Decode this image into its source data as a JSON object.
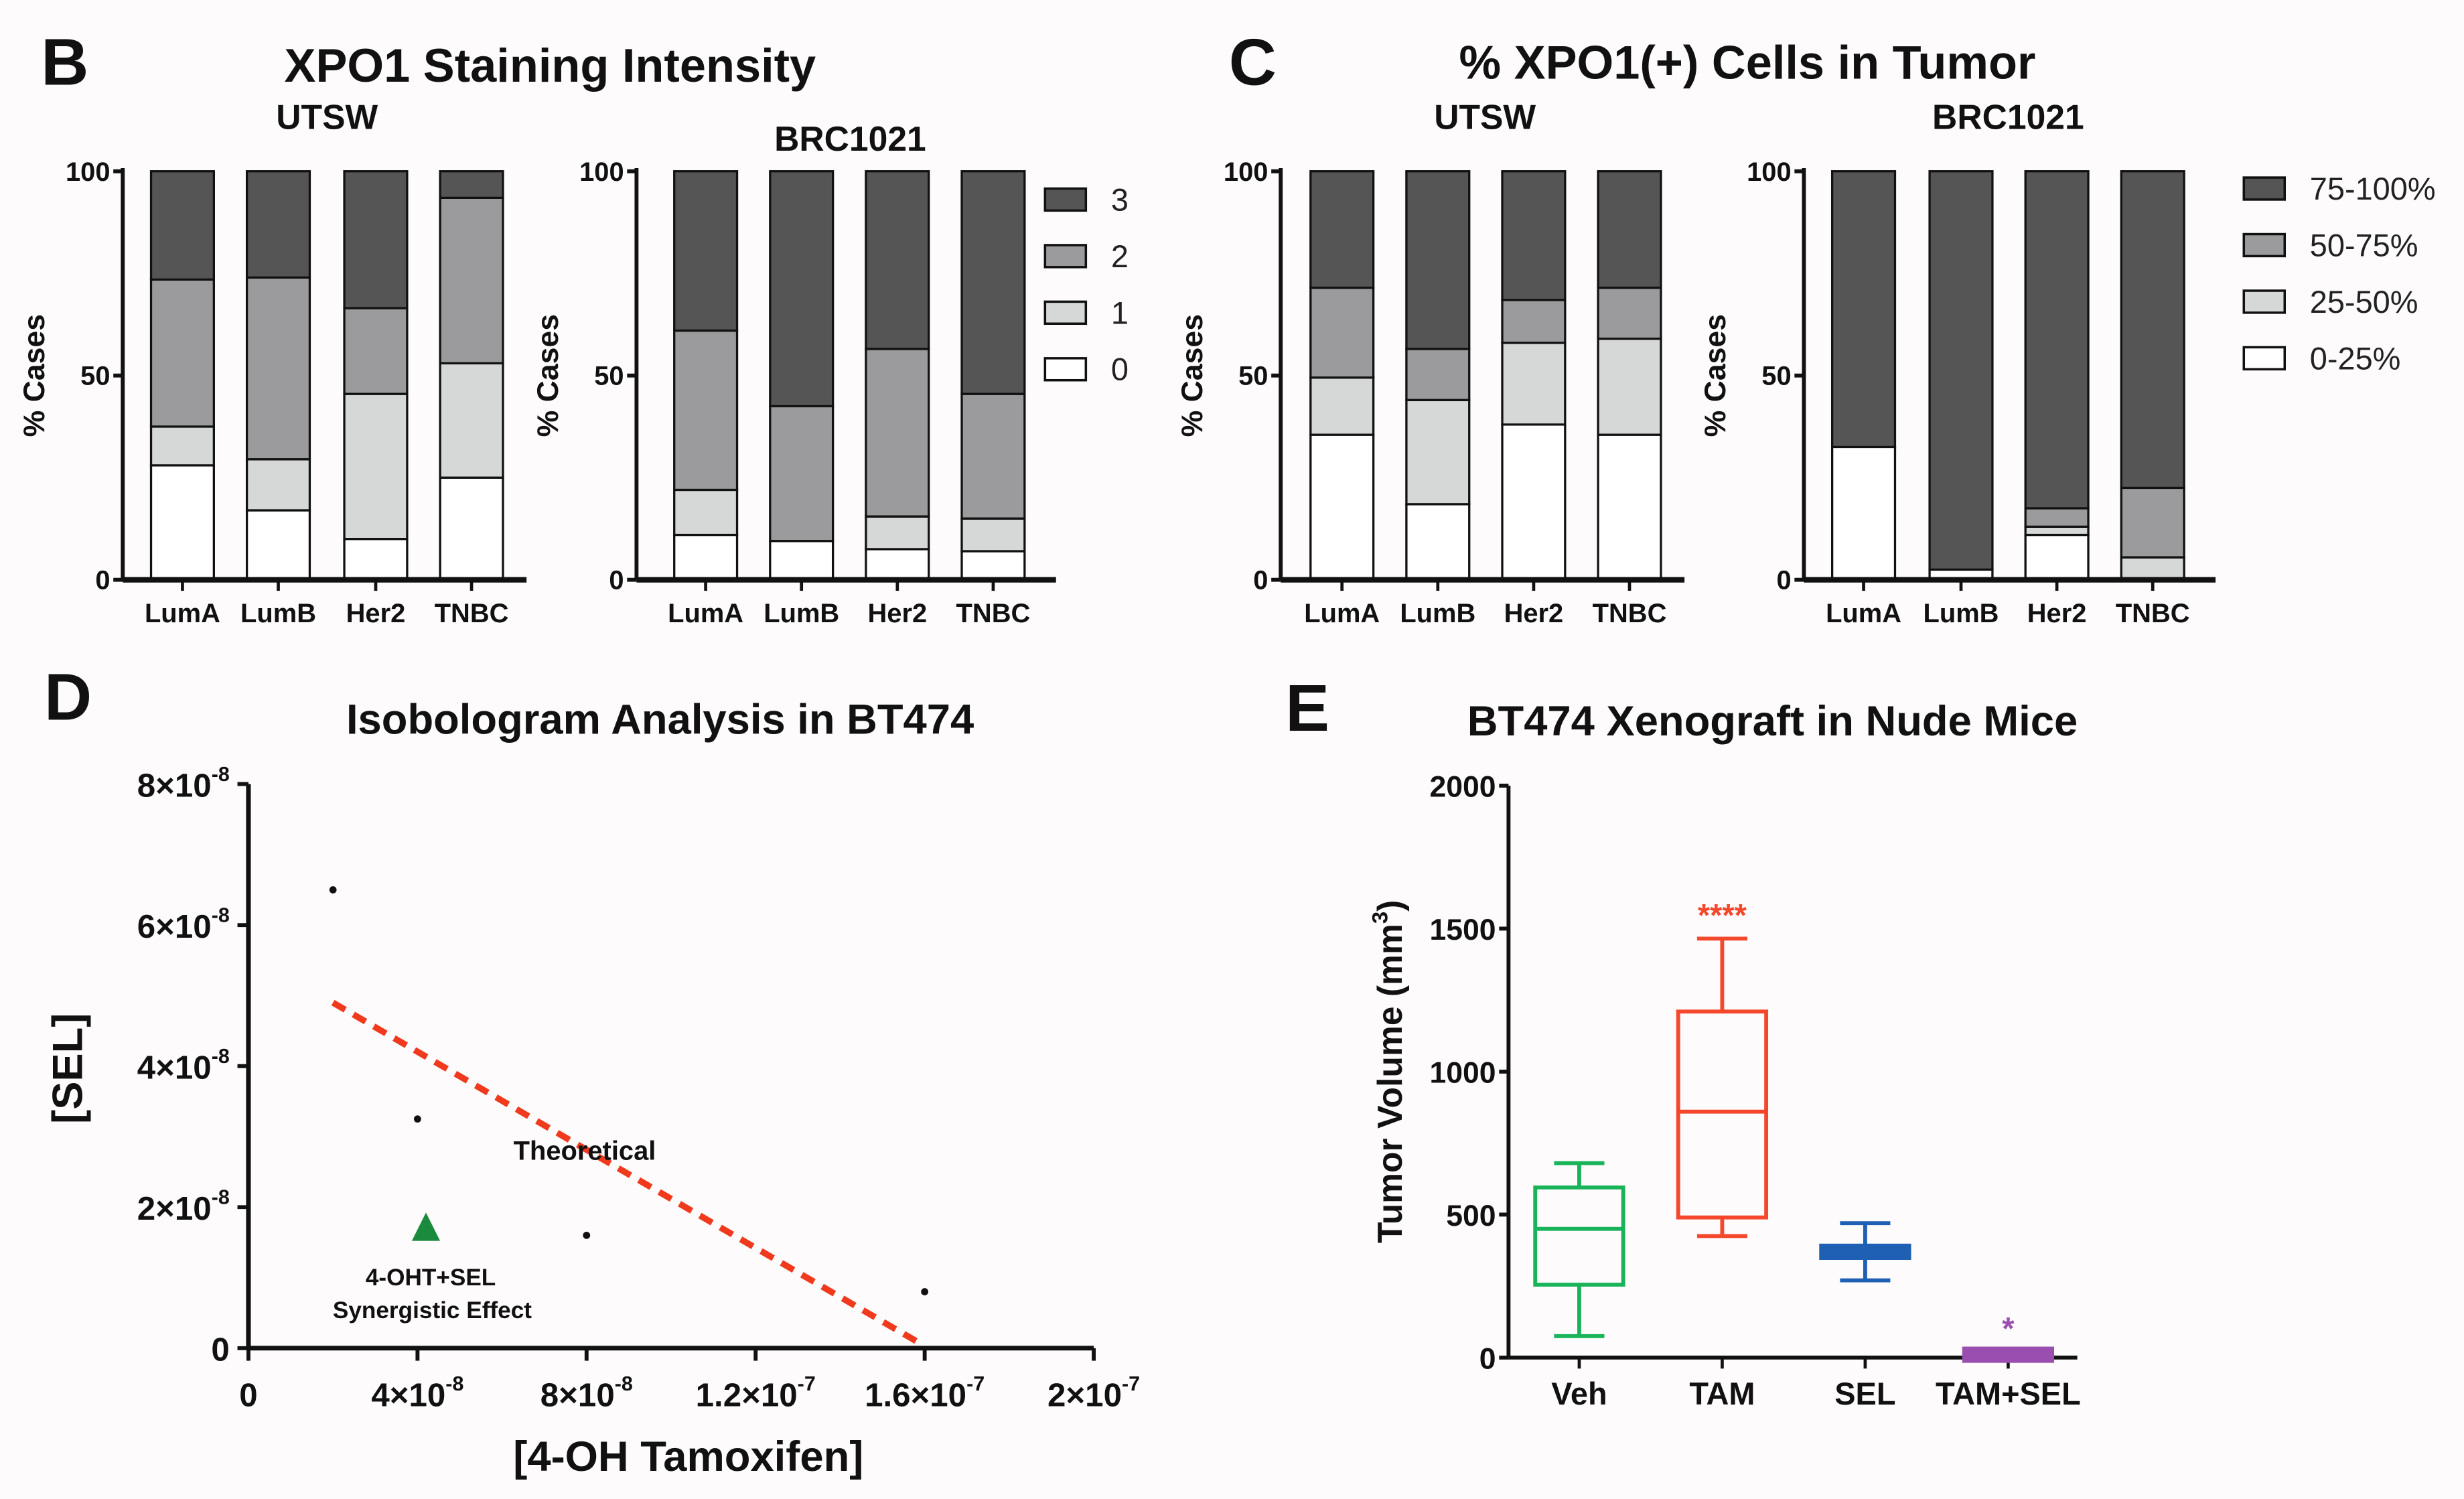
{
  "panel_letters": {
    "b": "B",
    "c": "C",
    "d": "D",
    "e": "E"
  },
  "chart_data": [
    {
      "id": "b_utsw",
      "type": "bar",
      "stacked": true,
      "title": "XPO1 Staining Intensity",
      "subtitle": "UTSW",
      "ylabel": "% Cases",
      "ylim": [
        0,
        100
      ],
      "yticks": [
        "0",
        "50",
        "100"
      ],
      "categories": [
        "LumA",
        "LumB",
        "Her2",
        "TNBC"
      ],
      "series": [
        {
          "name": "0",
          "values": [
            28,
            17,
            10,
            25
          ]
        },
        {
          "name": "1",
          "values": [
            9.5,
            12.5,
            35.5,
            28
          ]
        },
        {
          "name": "2",
          "values": [
            36,
            44.5,
            21,
            40.5
          ]
        },
        {
          "name": "3",
          "values": [
            26.5,
            26,
            33.5,
            6.5
          ]
        }
      ]
    },
    {
      "id": "b_brc",
      "type": "bar",
      "stacked": true,
      "subtitle": "BRC1021",
      "ylabel": "% Cases",
      "ylim": [
        0,
        100
      ],
      "yticks": [
        "0",
        "50",
        "100"
      ],
      "categories": [
        "LumA",
        "LumB",
        "Her2",
        "TNBC"
      ],
      "series": [
        {
          "name": "0",
          "values": [
            11,
            9.5,
            7.5,
            7
          ]
        },
        {
          "name": "1",
          "values": [
            11,
            0,
            8,
            8
          ]
        },
        {
          "name": "2",
          "values": [
            39,
            33,
            41,
            30.5
          ]
        },
        {
          "name": "3",
          "values": [
            39,
            57.5,
            43.5,
            54.5
          ]
        }
      ],
      "legend": [
        "3",
        "2",
        "1",
        "0"
      ],
      "legend_position": "right"
    },
    {
      "id": "c_utsw",
      "type": "bar",
      "stacked": true,
      "title": "% XPO1(+) Cells in Tumor",
      "subtitle": "UTSW",
      "ylabel": "% Cases",
      "ylim": [
        0,
        100
      ],
      "yticks": [
        "0",
        "50",
        "100"
      ],
      "categories": [
        "LumA",
        "LumB",
        "Her2",
        "TNBC"
      ],
      "series": [
        {
          "name": "0-25%",
          "values": [
            35.5,
            18.5,
            38,
            35.5
          ]
        },
        {
          "name": "25-50%",
          "values": [
            14,
            25.5,
            20,
            23.5
          ]
        },
        {
          "name": "50-75%",
          "values": [
            22,
            12.5,
            10.5,
            12.5
          ]
        },
        {
          "name": "75-100%",
          "values": [
            28.5,
            43.5,
            31.5,
            28.5
          ]
        }
      ]
    },
    {
      "id": "c_brc",
      "type": "bar",
      "stacked": true,
      "subtitle": "BRC1021",
      "ylabel": "% Cases",
      "ylim": [
        0,
        100
      ],
      "yticks": [
        "0",
        "50",
        "100"
      ],
      "categories": [
        "LumA",
        "LumB",
        "Her2",
        "TNBC"
      ],
      "series": [
        {
          "name": "0-25%",
          "values": [
            32.5,
            2.5,
            11,
            0
          ]
        },
        {
          "name": "25-50%",
          "values": [
            0,
            0,
            2,
            5.5
          ]
        },
        {
          "name": "50-75%",
          "values": [
            0,
            0,
            4.5,
            17
          ]
        },
        {
          "name": "75-100%",
          "values": [
            67.5,
            97.5,
            82.5,
            77.5
          ]
        }
      ],
      "legend": [
        "75-100%",
        "50-75%",
        "25-50%",
        "0-25%"
      ],
      "legend_position": "right"
    },
    {
      "id": "d",
      "type": "scatter",
      "title": "Isobologram Analysis in BT474",
      "xlabel": "[4-OH Tamoxifen]",
      "ylabel": "[SEL]",
      "xlim": [
        0,
        2e-07
      ],
      "ylim": [
        0,
        8e-08
      ],
      "xticks": [
        {
          "m": "0",
          "e": ""
        },
        {
          "m": "4×10",
          "e": "-8"
        },
        {
          "m": "8×10",
          "e": "-8"
        },
        {
          "m": "1.2×10",
          "e": "-7"
        },
        {
          "m": "1.6×10",
          "e": "-7"
        },
        {
          "m": "2×10",
          "e": "-7"
        }
      ],
      "yticks": [
        {
          "m": "0",
          "e": ""
        },
        {
          "m": "2×10",
          "e": "-8"
        },
        {
          "m": "4×10",
          "e": "-8"
        },
        {
          "m": "6×10",
          "e": "-8"
        },
        {
          "m": "8×10",
          "e": "-8"
        }
      ],
      "points": [
        [
          2e-08,
          6.5e-08
        ],
        [
          4e-08,
          3.25e-08
        ],
        [
          8e-08,
          1.6e-08
        ],
        [
          1.6e-07,
          8e-09
        ]
      ],
      "theoretical_line": [
        [
          2e-08,
          4.9e-08
        ],
        [
          1.58e-07,
          1e-09
        ]
      ],
      "theoretical_label": "Theoretical",
      "theoretical_color": "#f03a1e",
      "combo_point": [
        4.2e-08,
        1.7e-08
      ],
      "combo_color": "#1a8a3c",
      "combo_label_1": "4-OHT+SEL",
      "combo_label_2": "Synergistic Effect"
    },
    {
      "id": "e",
      "type": "box",
      "title": "BT474 Xenograft in Nude Mice",
      "ylabel": "Tumor Volume (mm",
      "ylabel_sup": "3",
      "ylabel_end": ")",
      "ylim": [
        0,
        2000
      ],
      "yticks": [
        "0",
        "500",
        "1000",
        "1500",
        "2000"
      ],
      "categories": [
        "Veh",
        "TAM",
        "SEL",
        "TAM+SEL"
      ],
      "boxes": [
        {
          "min": 75,
          "q1": 255,
          "median": 450,
          "q3": 595,
          "max": 680,
          "color": "#19b35a",
          "sig": ""
        },
        {
          "min": 425,
          "q1": 490,
          "median": 860,
          "q3": 1210,
          "max": 1465,
          "color": "#f4472b",
          "sig": "****"
        },
        {
          "min": 270,
          "q1": 365,
          "median": 370,
          "q3": 375,
          "max": 470,
          "color": "#1f5fb4",
          "sig": ""
        },
        {
          "min": 0,
          "q1": 5,
          "median": 10,
          "q3": 15,
          "max": 20,
          "color": "#9a4fb0",
          "sig": "*"
        }
      ]
    }
  ],
  "colors": {
    "level3": "#555555",
    "level2": "#9b9b9d",
    "level1": "#d6d8d8",
    "level0": "#ffffff"
  }
}
